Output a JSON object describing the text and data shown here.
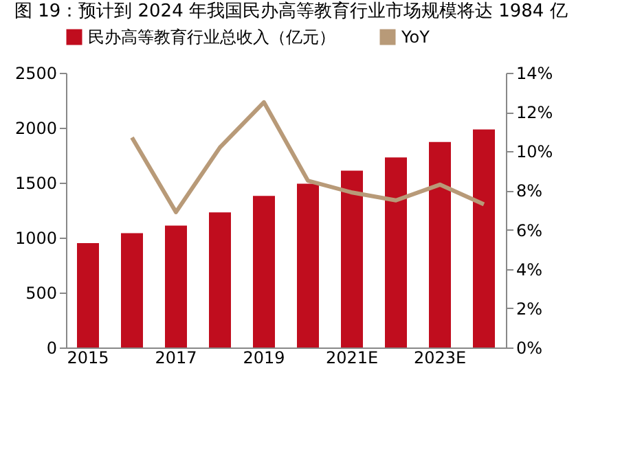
{
  "chart_data": {
    "type": "bar",
    "title": "图 19：预计到 2024 年我国民办高等教育行业市场规模将达 1984 亿",
    "categories": [
      "2015",
      null,
      "2017",
      null,
      "2019",
      null,
      "2021E",
      null,
      "2023E",
      null
    ],
    "series": [
      {
        "name": "民办高等教育行业总收入（亿元）",
        "color": "#c00d1e",
        "values": [
          950,
          1040,
          1110,
          1230,
          1380,
          1490,
          1610,
          1730,
          1870,
          1984
        ]
      },
      {
        "name": "YoY",
        "type": "line",
        "axis": "y2",
        "color": "#b89a78",
        "values": [
          null,
          10.7,
          6.9,
          10.2,
          12.5,
          8.5,
          7.9,
          7.5,
          8.3,
          7.3
        ]
      }
    ],
    "ylim": [
      0,
      2500
    ],
    "yticks": [
      0,
      500,
      1000,
      1500,
      2000,
      2500
    ],
    "y2lim": [
      0,
      14
    ],
    "y2ticks": [
      {
        "value": 0,
        "label": "0%"
      },
      {
        "value": 2,
        "label": "2%"
      },
      {
        "value": 4,
        "label": "4%"
      },
      {
        "value": 6,
        "label": "6%"
      },
      {
        "value": 8,
        "label": "8%"
      },
      {
        "value": 10,
        "label": "10%"
      },
      {
        "value": 12,
        "label": "12%"
      },
      {
        "value": 14,
        "label": "14%"
      }
    ],
    "grid": false,
    "legend": "top"
  }
}
